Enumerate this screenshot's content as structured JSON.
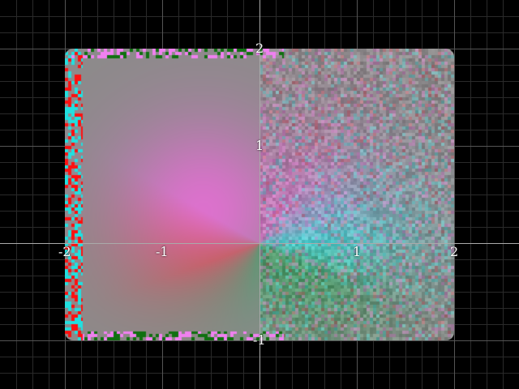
{
  "chart_data": {
    "type": "heatmap",
    "title": "",
    "xlabel": "",
    "ylabel": "",
    "xlim": [
      -2.667,
      2.667
    ],
    "ylim": [
      -1.5,
      2.5
    ],
    "region": {
      "x": [
        -2,
        2
      ],
      "y": [
        -1,
        2
      ]
    },
    "grid": true,
    "grid_minor_step": 0.1667,
    "grid_major_step": 1,
    "x_ticks": [
      {
        "value": -2,
        "label": "-2"
      },
      {
        "value": -1,
        "label": "-1"
      },
      {
        "value": 1,
        "label": "1"
      },
      {
        "value": 2,
        "label": "2"
      }
    ],
    "y_ticks": [
      {
        "value": 2,
        "label": "2"
      },
      {
        "value": 1,
        "label": "1"
      },
      {
        "value": -1,
        "label": "-1"
      }
    ],
    "color_scale": "domain coloring (hue = argument, noise grows with distance)",
    "colors": {
      "background": "#000000",
      "minor_grid": "#2a2a2a",
      "major_grid": "#555555",
      "axis": "#aaaaaa",
      "field_base": "#8c8a8a",
      "hue_red": "#e05060",
      "hue_magenta": "#e070d0",
      "hue_cyan": "#40d8d8",
      "hue_green": "#3ca060",
      "edge_red": "#ff1010",
      "edge_cyan": "#20e0e0",
      "edge_magenta": "#f080f0",
      "edge_green": "#107010"
    }
  }
}
